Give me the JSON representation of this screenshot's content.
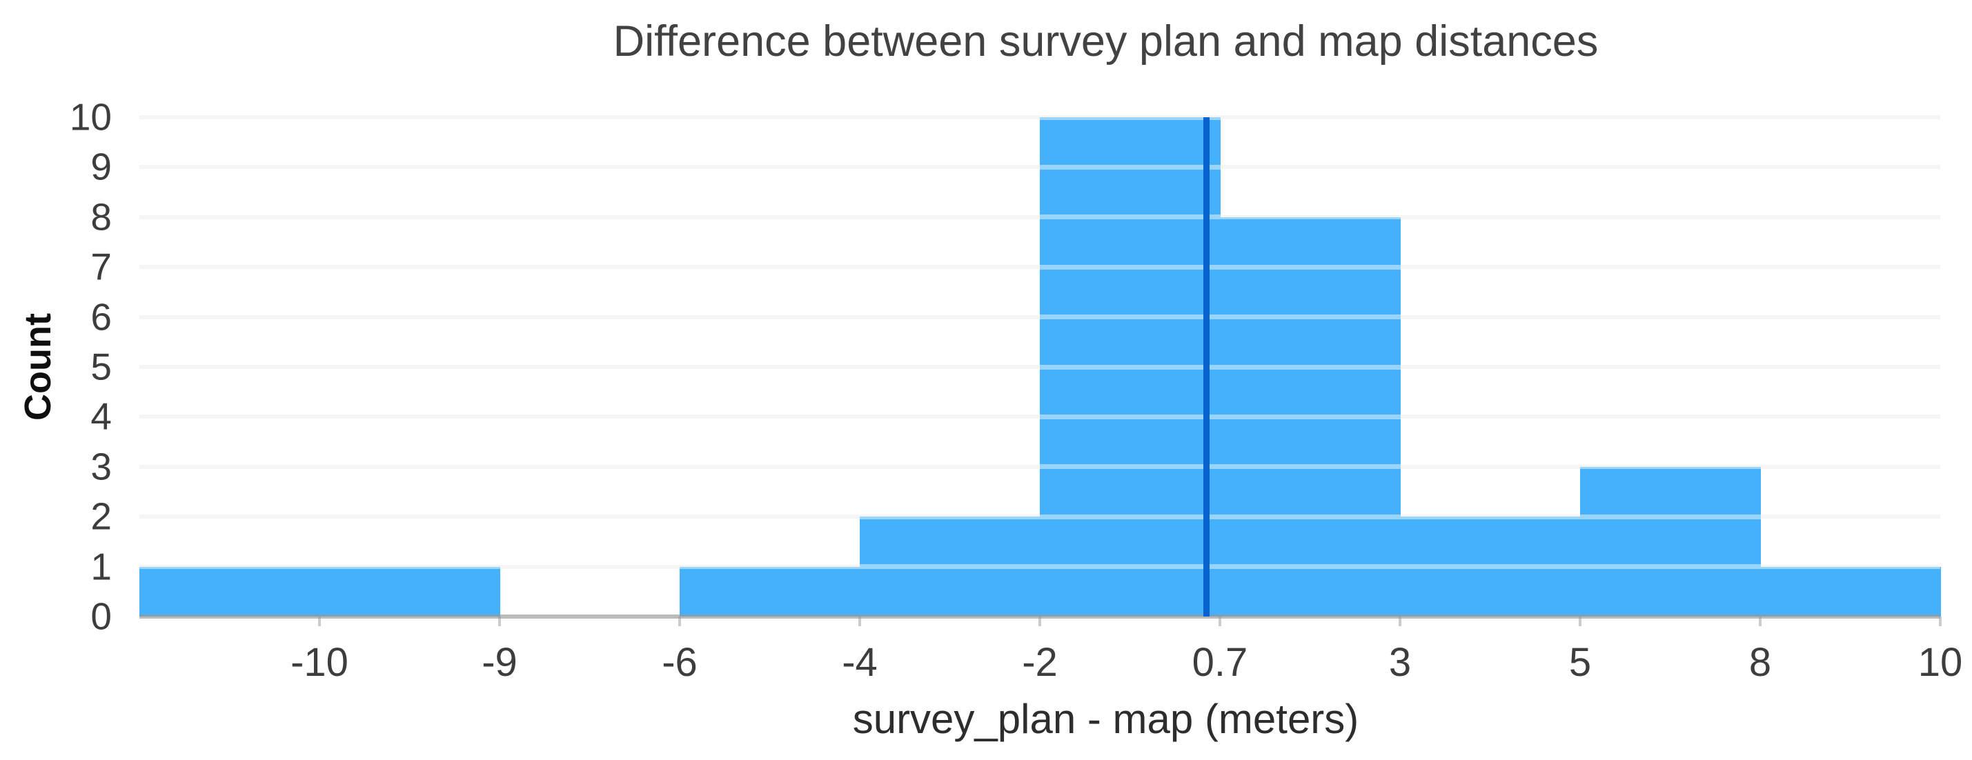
{
  "chart": {
    "title": "Difference between survey plan and map distances",
    "ylabel": "Count",
    "xlabel": "survey_plan - map (meters)"
  },
  "chart_data": {
    "type": "bar",
    "subtype": "histogram",
    "title": "Difference between survey plan and map distances",
    "xlabel": "survey_plan - map (meters)",
    "ylabel": "Count",
    "x_scale": "ordinal bins: equal on-screen width per bin, numeric edge labels at bin boundaries, leftmost bin edge unlabeled",
    "x_tick_labels": [
      "-10",
      "-9",
      "-6",
      "-4",
      "-2",
      "0.7",
      "3",
      "5",
      "8",
      "10"
    ],
    "y_tick_labels": [
      "10",
      "9",
      "8",
      "7",
      "6",
      "5",
      "4",
      "3",
      "2",
      "1",
      "0"
    ],
    "ylim": [
      0,
      10
    ],
    "grid": "horizontal gridlines on, light gray, drawn over bars",
    "legend": "none",
    "bin_ranges": [
      "below -10",
      "-10 to -9",
      "-9 to -6",
      "-6 to -4",
      "-4 to -2",
      "-2 to 0.7",
      "0.7 to 3",
      "3 to 5",
      "5 to 8",
      "8 to 10"
    ],
    "counts": [
      1,
      1,
      0,
      1,
      2,
      10,
      8,
      2,
      3,
      1
    ],
    "marker_line": {
      "description": "dark blue vertical line inside the -2 to 0.7 bin, just left of the 0.7 edge",
      "approx_value": 0.5,
      "color": "#0a62ce"
    },
    "bar_color": "#45b1fc",
    "gridline_color": "#ededed",
    "axis_line_color": "#bababa",
    "tick_mark_color": "#cccccc",
    "title_color": "#424242",
    "tick_label_color": "#3d3d3d"
  }
}
